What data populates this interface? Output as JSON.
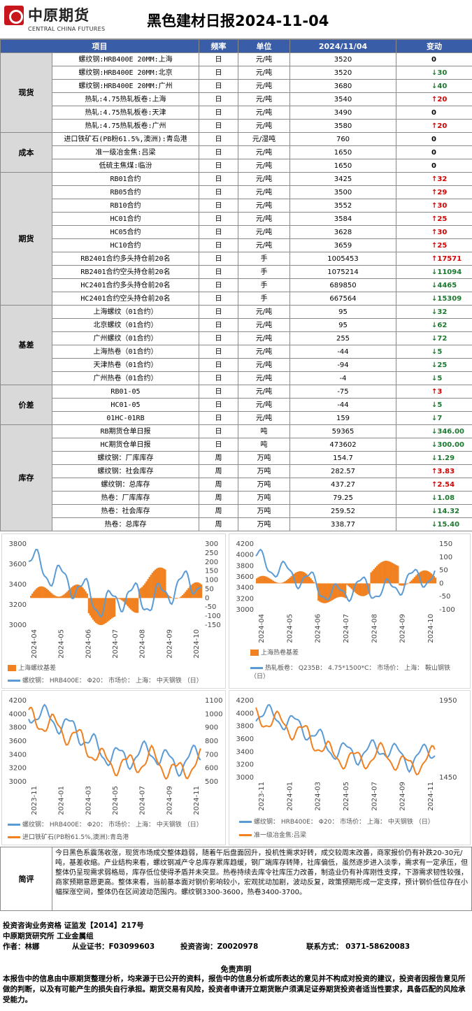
{
  "header": {
    "logo_cn": "中原期货",
    "logo_en": "CENTRAL CHINA FUTURES",
    "title": "黑色建材日报2024-11-04"
  },
  "table": {
    "headers": [
      "项目",
      "频率",
      "单位",
      "2024/11/04",
      "变动"
    ],
    "groups": [
      {
        "cat": "现货",
        "rows": [
          [
            "螺纹钢:HRB400E 20MM:上海",
            "日",
            "元/吨",
            "3520",
            "0",
            "zero"
          ],
          [
            "螺纹钢:HRB400E 20MM:北京",
            "日",
            "元/吨",
            "3520",
            "30",
            "down"
          ],
          [
            "螺纹钢:HRB400E 20MM:广州",
            "日",
            "元/吨",
            "3680",
            "40",
            "down"
          ],
          [
            "热轧:4.75热轧板卷:上海",
            "日",
            "元/吨",
            "3540",
            "20",
            "up"
          ],
          [
            "热轧:4.75热轧板卷:天津",
            "日",
            "元/吨",
            "3490",
            "0",
            "zero"
          ],
          [
            "热轧:4.75热轧板卷:广州",
            "日",
            "元/吨",
            "3580",
            "20",
            "up"
          ]
        ]
      },
      {
        "cat": "成本",
        "rows": [
          [
            "进口铁矿石(PB粉61.5%,澳洲):青岛港",
            "日",
            "元/湿吨",
            "760",
            "0",
            "zero"
          ],
          [
            "准一级冶金焦:吕梁",
            "日",
            "元/吨",
            "1650",
            "0",
            "zero"
          ],
          [
            "低硫主焦煤:临汾",
            "日",
            "元/吨",
            "1650",
            "0",
            "zero"
          ]
        ]
      },
      {
        "cat": "期货",
        "rows": [
          [
            "RB01合约",
            "日",
            "元/吨",
            "3425",
            "32",
            "up"
          ],
          [
            "RB05合约",
            "日",
            "元/吨",
            "3500",
            "29",
            "up"
          ],
          [
            "RB10合约",
            "日",
            "元/吨",
            "3552",
            "30",
            "up"
          ],
          [
            "HC01合约",
            "日",
            "元/吨",
            "3584",
            "25",
            "up"
          ],
          [
            "HC05合约",
            "日",
            "元/吨",
            "3628",
            "30",
            "up"
          ],
          [
            "HC10合约",
            "日",
            "元/吨",
            "3659",
            "25",
            "up"
          ],
          [
            "RB2401合约多头持仓前20名",
            "日",
            "手",
            "1005453",
            "17571",
            "up"
          ],
          [
            "RB2401合约空头持仓前20名",
            "日",
            "手",
            "1075214",
            "11094",
            "down"
          ],
          [
            "HC2401合约多头持仓前20名",
            "日",
            "手",
            "689850",
            "4465",
            "down"
          ],
          [
            "HC2401合约空头持仓前20名",
            "日",
            "手",
            "667564",
            "15309",
            "down"
          ]
        ]
      },
      {
        "cat": "基差",
        "rows": [
          [
            "上海螺纹（01合约）",
            "日",
            "元/吨",
            "95",
            "32",
            "down"
          ],
          [
            "北京螺纹（01合约）",
            "日",
            "元/吨",
            "95",
            "62",
            "down"
          ],
          [
            "广州螺纹（01合约）",
            "日",
            "元/吨",
            "255",
            "72",
            "down"
          ],
          [
            "上海热卷（01合约）",
            "日",
            "元/吨",
            "-44",
            "5",
            "down"
          ],
          [
            "天津热卷（01合约）",
            "日",
            "元/吨",
            "-94",
            "25",
            "down"
          ],
          [
            "广州热卷（01合约）",
            "日",
            "元/吨",
            "-4",
            "5",
            "down"
          ]
        ]
      },
      {
        "cat": "价差",
        "rows": [
          [
            "RB01-05",
            "日",
            "元/吨",
            "-75",
            "3",
            "up"
          ],
          [
            "HC01-05",
            "日",
            "元/吨",
            "-44",
            "5",
            "down"
          ],
          [
            "01HC-01RB",
            "日",
            "元/吨",
            "159",
            "7",
            "down"
          ]
        ]
      },
      {
        "cat": "库存",
        "rows": [
          [
            "RB期货仓单日报",
            "日",
            "吨",
            "59365",
            "346.00",
            "down"
          ],
          [
            "HC期货仓单日报",
            "日",
            "吨",
            "473602",
            "300.00",
            "down"
          ],
          [
            "螺纹钢：厂库库存",
            "周",
            "万吨",
            "154.7",
            "1.29",
            "down"
          ],
          [
            "螺纹钢：社会库存",
            "周",
            "万吨",
            "282.57",
            "3.83",
            "up"
          ],
          [
            "螺纹钢：总库存",
            "周",
            "万吨",
            "437.27",
            "2.54",
            "up"
          ],
          [
            "热卷：厂库库存",
            "周",
            "万吨",
            "79.25",
            "1.08",
            "down"
          ],
          [
            "热卷：社会库存",
            "周",
            "万吨",
            "259.52",
            "14.32",
            "down"
          ],
          [
            "热卷：总库存",
            "周",
            "万吨",
            "338.77",
            "15.40",
            "down"
          ]
        ]
      }
    ]
  },
  "charts": [
    {
      "legend_bar": "上海螺纹基差",
      "legend_line": "螺纹钢： HRB400E： Φ20： 市场价： 上海： 中天钢铁 （日）",
      "x_ticks": [
        "2024-04",
        "2024-05",
        "2024-06",
        "2024-07",
        "2024-08",
        "2024-09",
        "2024-10"
      ],
      "yl_ticks": [
        "3800",
        "3600",
        "3400",
        "3200",
        "3000"
      ],
      "yr_ticks": [
        "300",
        "250",
        "200",
        "150",
        "100",
        "50",
        "0",
        "-50",
        "-100",
        "-150"
      ],
      "line_color": "#5b9bd5",
      "bar_color": "#f08020"
    },
    {
      "legend_bar": "上海热卷基差",
      "legend_line": "热轧板卷： Q235B： 4.75*1500*C： 市场价： 上海： 鞍山钢铁 （日）",
      "x_ticks": [
        "2024-04",
        "2024-05",
        "2024-06",
        "2024-07",
        "2024-08",
        "2024-09",
        "2024-10"
      ],
      "yl_ticks": [
        "4200",
        "4000",
        "3800",
        "3600",
        "3400",
        "3200",
        "3000"
      ],
      "yr_ticks": [
        "150",
        "100",
        "50",
        "0",
        "-50",
        "-100"
      ],
      "line_color": "#5b9bd5",
      "bar_color": "#f08020"
    },
    {
      "legend_a": "螺纹钢： HRB400E： Φ20： 市场价： 上海： 中天钢铁 （日）",
      "legend_b": "进口铁矿石(PB粉61.5%,澳洲):青岛港",
      "x_ticks": [
        "2023-11",
        "2024-01",
        "2024-03",
        "2024-05",
        "2024-07",
        "2024-09",
        "2024-11"
      ],
      "yl_ticks": [
        "4200",
        "4000",
        "3800",
        "3600",
        "3400",
        "3200",
        "3000"
      ],
      "yr_ticks": [
        "1100",
        "1000",
        "900",
        "800",
        "700",
        "600",
        "500"
      ],
      "color_a": "#5b9bd5",
      "color_b": "#f08020"
    },
    {
      "legend_a": "螺纹钢： HRB400E： Φ20： 市场价： 上海： 中天钢铁 （日）",
      "legend_b": "准一级冶金焦:吕梁",
      "x_ticks": [
        "2023-11",
        "2024-01",
        "2024-03",
        "2024-05",
        "2024-07",
        "2024-09",
        "2024-11"
      ],
      "yl_ticks": [
        "4200",
        "4000",
        "3800",
        "3600",
        "3400",
        "3200",
        "3000"
      ],
      "yr_ticks": [
        "1950",
        "1450"
      ],
      "color_a": "#5b9bd5",
      "color_b": "#f08020"
    }
  ],
  "comment": {
    "label": "简评",
    "text": "今日黑色系震荡收涨，现货市场成交整体趋弱，随着午后盘面回升，投机性需求好转，成交较周末改善，商家报价仍有补跌20-30元/吨，基差收缩。产业结构来看，螺纹钢减产令总库存累库趋缓，钢厂端库存转降，社库偏低，虽然逐步进入淡季，需求有一定承压，但整体仍呈现需求弱格局，库存低位使得矛盾并未突显。热卷持续去库令社库压力改善，制造业仍有补库刚性支撑，下游需求韧性较强，商家预期意愿更高。整体来看，当前基本面对钢价影响较小，宏观扰动加剧，波动反复，政策预期形成一定支撑，预计钢价低位存在小幅探涨空间，整体仍在区间波动范围内。螺纹钢3300-3600，热卷3400-3700。"
  },
  "footer": {
    "line1": "投资咨询业务资格    证监发【2014】217号",
    "line2": "中原期货研究所    工业金属组",
    "author": "作者：林娜",
    "cert": "从业证书：F03099603",
    "consult": "投资咨询：Z0020978",
    "contact": "联系方式：  0371-58620083",
    "disc_title": "免责声明",
    "disc_text": "本报告中的信息由中原期货整理分析，均来源于已公开的资料，报告中的信息分析或所表达的意见并不构成对投资的建议，投资者因报告意见所做的判断，以及有可能产生的损失自行承担。期货交易有风险，投资者申请开立期货账户须满足证券期货投资者适当性要求，具备匹配的风险承受能力。"
  }
}
